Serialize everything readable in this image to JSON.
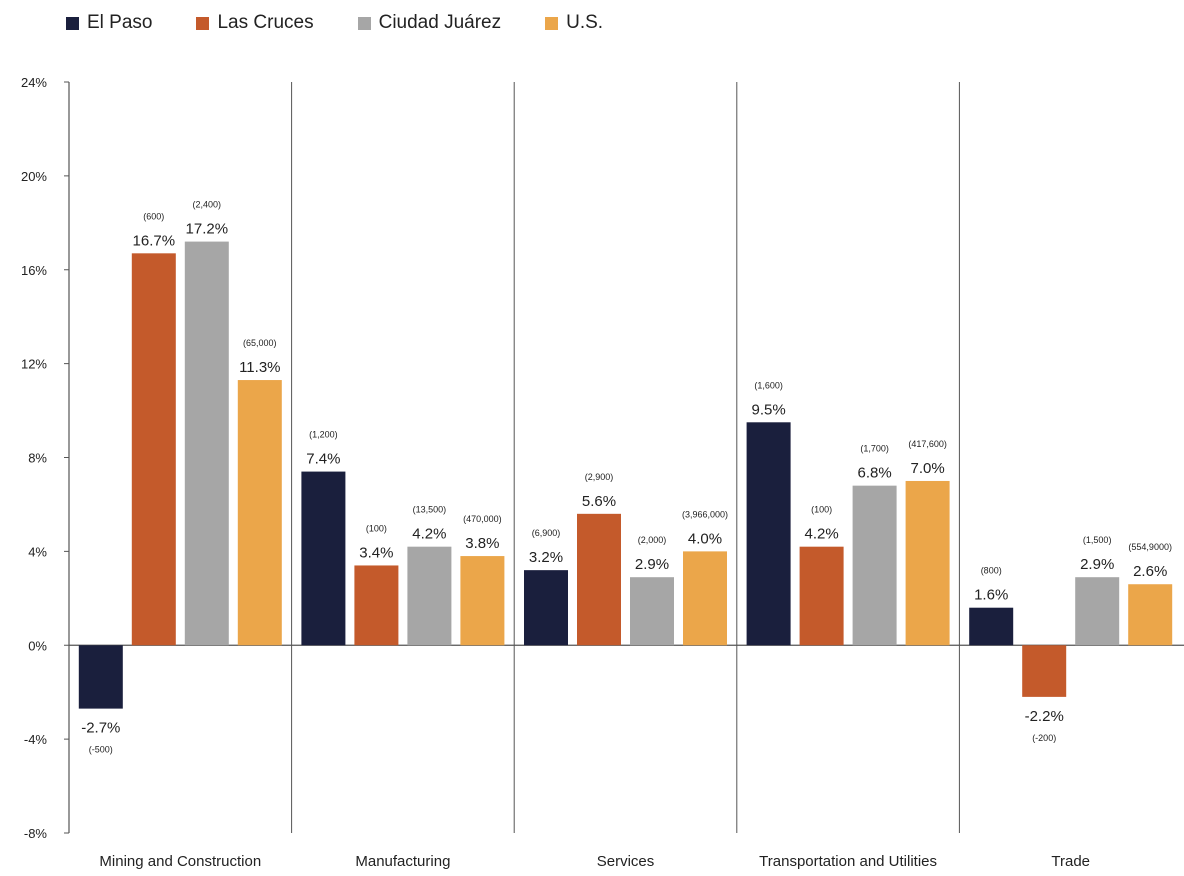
{
  "colors": {
    "El Paso": "#1a1f3d",
    "Las Cruces": "#c45a2b",
    "Ciudad Juárez": "#a6a6a6",
    "U.S.": "#eba64a",
    "axis": "#555555",
    "text": "#222222"
  },
  "chart_data": {
    "type": "bar",
    "title": "",
    "xlabel": "",
    "ylabel": "",
    "ylim": [
      -8,
      24
    ],
    "yticks": [
      -8,
      -4,
      0,
      4,
      8,
      12,
      16,
      20,
      24
    ],
    "ytick_labels": [
      "-8%",
      "-4%",
      "0%",
      "4%",
      "8%",
      "12%",
      "16%",
      "20%",
      "24%"
    ],
    "grid": false,
    "legend_position": "top-left",
    "categories": [
      "Mining and Construction",
      "Manufacturing",
      "Services",
      "Transportation and Utilities",
      "Trade"
    ],
    "series": [
      {
        "name": "El Paso",
        "values": [
          -2.7,
          7.4,
          3.2,
          9.5,
          1.6
        ],
        "labels": [
          "-2.7%",
          "7.4%",
          "3.2%",
          "9.5%",
          "1.6%"
        ],
        "counts": [
          "(-500)",
          "(1,200)",
          "(6,900)",
          "(1,600)",
          "(800)"
        ]
      },
      {
        "name": "Las Cruces",
        "values": [
          16.7,
          3.4,
          5.6,
          4.2,
          -2.2
        ],
        "labels": [
          "16.7%",
          "3.4%",
          "5.6%",
          "4.2%",
          "-2.2%"
        ],
        "counts": [
          "(600)",
          "(100)",
          "(2,900)",
          "(100)",
          "(-200)"
        ]
      },
      {
        "name": "Ciudad Juárez",
        "values": [
          17.2,
          4.2,
          2.9,
          6.8,
          2.9
        ],
        "labels": [
          "17.2%",
          "4.2%",
          "2.9%",
          "6.8%",
          "2.9%"
        ],
        "counts": [
          "(2,400)",
          "(13,500)",
          "(2,000)",
          "(1,700)",
          "(1,500)"
        ]
      },
      {
        "name": "U.S.",
        "values": [
          11.3,
          3.8,
          4.0,
          7.0,
          2.6
        ],
        "labels": [
          "11.3%",
          "3.8%",
          "4.0%",
          "7.0%",
          "2.6%"
        ],
        "counts": [
          "(65,000)",
          "(470,000)",
          "(3,966,000)",
          "(417,600)",
          "(554,9000)"
        ]
      }
    ]
  }
}
